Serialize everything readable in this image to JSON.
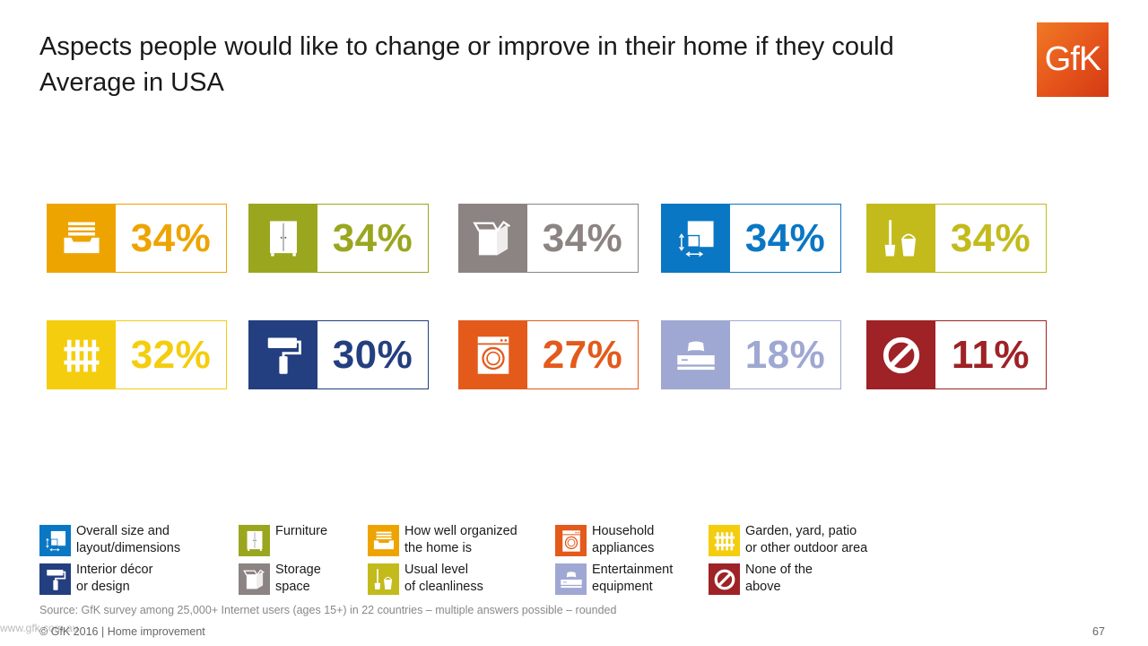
{
  "title": {
    "line1": "Aspects people would like to change or improve in their home if they could",
    "line2": "Average in USA"
  },
  "logo_text": "GfK",
  "chart_data": {
    "type": "table",
    "title": "Aspects people would like to change or improve in their home if they could",
    "subtitle": "Average in USA",
    "unit": "%",
    "items": [
      {
        "category": "How well organized the home is",
        "value": 34,
        "label": "34%",
        "color": "#eea400",
        "icon": "organized-drawer-icon"
      },
      {
        "category": "Furniture",
        "value": 34,
        "label": "34%",
        "color": "#9aa71e",
        "icon": "wardrobe-icon"
      },
      {
        "category": "Storage space",
        "value": 34,
        "label": "34%",
        "color": "#8c8482",
        "icon": "storage-box-icon"
      },
      {
        "category": "Overall size and layout/dimensions",
        "value": 34,
        "label": "34%",
        "color": "#0a77c4",
        "icon": "floorplan-dimensions-icon"
      },
      {
        "category": "Usual level of cleanliness",
        "value": 34,
        "label": "34%",
        "color": "#c2bb1b",
        "icon": "broom-bucket-icon"
      },
      {
        "category": "Garden, yard, patio or other outdoor area",
        "value": 32,
        "label": "32%",
        "color": "#f4cd0e",
        "icon": "fence-icon"
      },
      {
        "category": "Interior décor or design",
        "value": 30,
        "label": "30%",
        "color": "#243f80",
        "icon": "paint-roller-icon"
      },
      {
        "category": "Household appliances",
        "value": 27,
        "label": "27%",
        "color": "#e35a1b",
        "icon": "washing-machine-icon"
      },
      {
        "category": "Entertainment equipment",
        "value": 18,
        "label": "18%",
        "color": "#9fa8d2",
        "icon": "game-console-icon"
      },
      {
        "category": "None of the above",
        "value": 11,
        "label": "11%",
        "color": "#9e2226",
        "icon": "prohibited-icon"
      }
    ]
  },
  "legend": [
    {
      "lines": [
        "Overall size and",
        "layout/dimensions"
      ],
      "color": "#0a77c4",
      "icon": "floorplan-dimensions-icon"
    },
    {
      "lines": [
        "Furniture"
      ],
      "color": "#9aa71e",
      "icon": "wardrobe-icon"
    },
    {
      "lines": [
        "How well organized",
        "the home is"
      ],
      "color": "#eea400",
      "icon": "organized-drawer-icon"
    },
    {
      "lines": [
        "Household",
        "appliances"
      ],
      "color": "#e35a1b",
      "icon": "washing-machine-icon"
    },
    {
      "lines": [
        "Garden, yard, patio",
        "or other outdoor area"
      ],
      "color": "#f4cd0e",
      "icon": "fence-icon"
    },
    {
      "lines": [
        "Interior décor",
        "or design"
      ],
      "color": "#243f80",
      "icon": "paint-roller-icon"
    },
    {
      "lines": [
        "Storage",
        "space"
      ],
      "color": "#8c8482",
      "icon": "storage-box-icon"
    },
    {
      "lines": [
        "Usual level",
        "of cleanliness"
      ],
      "color": "#c2bb1b",
      "icon": "broom-bucket-icon"
    },
    {
      "lines": [
        "Entertainment",
        "equipment"
      ],
      "color": "#9fa8d2",
      "icon": "game-console-icon"
    },
    {
      "lines": [
        "None of the",
        "above"
      ],
      "color": "#9e2226",
      "icon": "prohibited-icon"
    }
  ],
  "source": "Source: GfK survey among 25,000+ Internet users (ages 15+) in 22 countries – multiple answers possible – rounded",
  "footer": "© GfK 2016 | Home improvement",
  "watermark": "www.gfk.com.au",
  "page_number": "67"
}
